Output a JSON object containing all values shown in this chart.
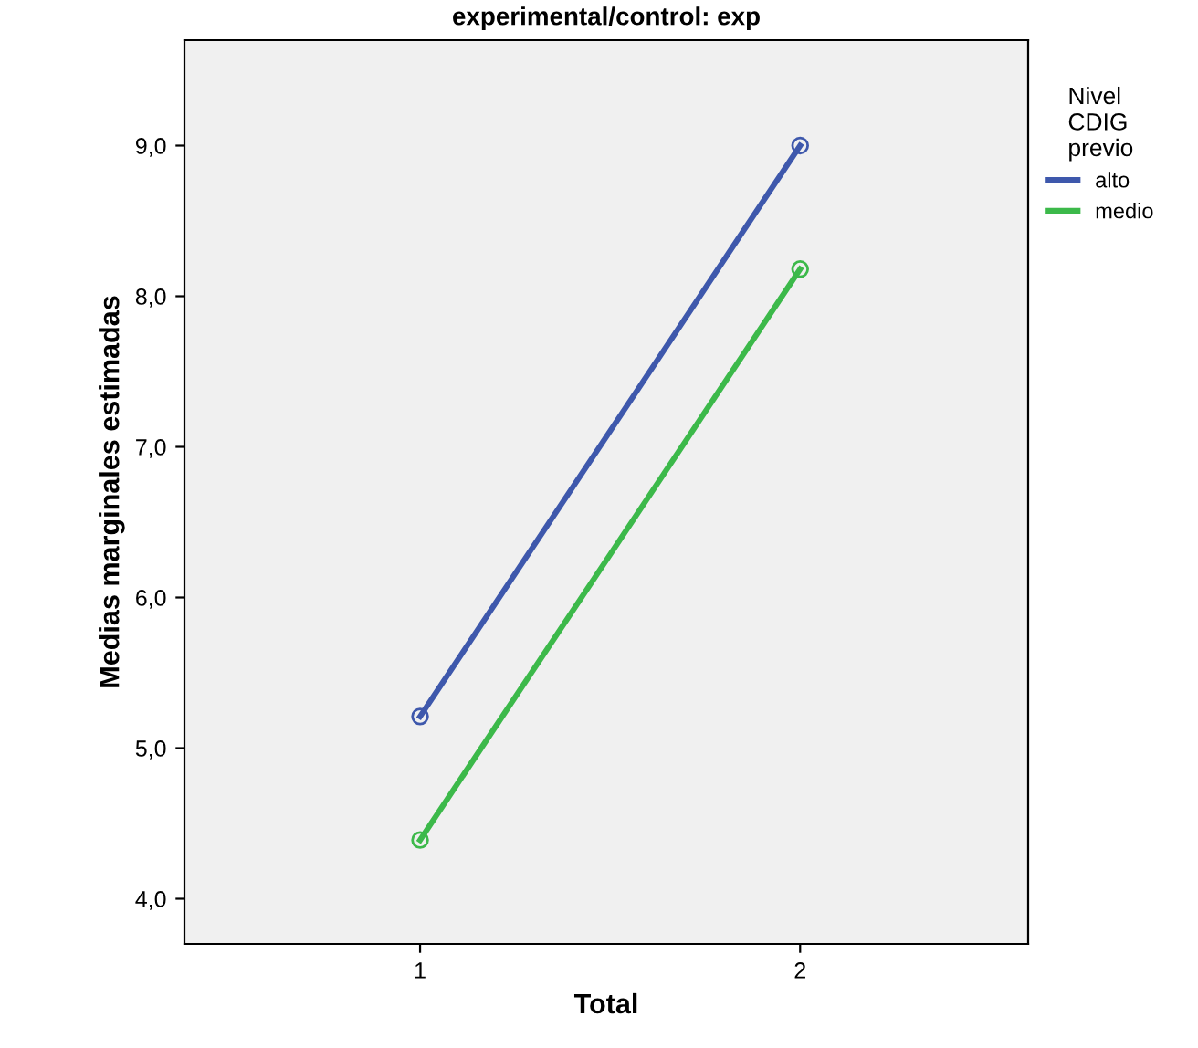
{
  "chart_data": {
    "type": "line",
    "title": "experimental/control: exp",
    "xlabel": "Total",
    "ylabel": "Medias marginales estimadas",
    "legend_title": "Nivel\nCDIG\nprevio",
    "legend": "right",
    "marker": "circle",
    "line_style": "solid",
    "grid": false,
    "x": [
      1,
      2
    ],
    "series": [
      {
        "name": "alto",
        "color": "#3e58ac",
        "values": [
          5.21,
          9.0
        ]
      },
      {
        "name": "medio",
        "color": "#3cb94a",
        "values": [
          4.39,
          8.18
        ]
      }
    ],
    "xlim": [
      0.38,
      2.6
    ],
    "xticks": [
      1,
      2
    ],
    "ylim": [
      3.7,
      9.7
    ],
    "yticks": [
      {
        "value": 4,
        "label": "4,0"
      },
      {
        "value": 5,
        "label": "5,0"
      },
      {
        "value": 6,
        "label": "6,0"
      },
      {
        "value": 7,
        "label": "7,0"
      },
      {
        "value": 8,
        "label": "8,0"
      },
      {
        "value": 9,
        "label": "9,0"
      }
    ]
  }
}
